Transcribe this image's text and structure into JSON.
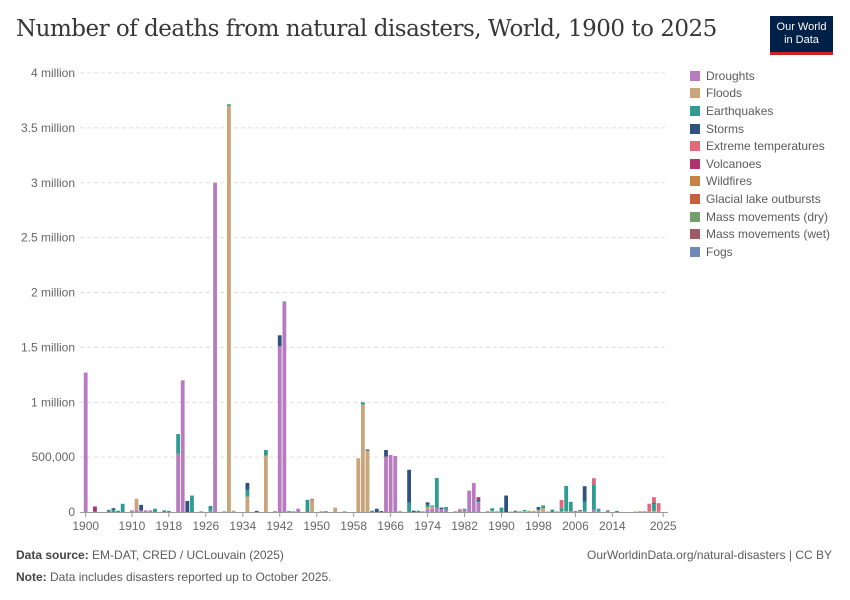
{
  "header": {
    "title": "Number of deaths from natural disasters, World, 1900 to 2025",
    "logo": "Our World in Data",
    "logo_line1": "Our World",
    "logo_line2": "in Data"
  },
  "footer": {
    "source_label": "Data source:",
    "source": "EM-DAT, CRED / UCLouvain (2025)",
    "url": "OurWorldinData.org/natural-disasters | CC BY",
    "note_label": "Note:",
    "note": "Data includes disasters reported up to October 2025."
  },
  "chart_data": {
    "type": "bar",
    "stacked": true,
    "title": "Number of deaths from natural disasters, World, 1900 to 2025",
    "xlim": [
      1900,
      2025
    ],
    "ylim": [
      0,
      4000000
    ],
    "grid": true,
    "legend": "right",
    "yticks": [
      {
        "v": 0,
        "label": "0"
      },
      {
        "v": 500000,
        "label": "500,000"
      },
      {
        "v": 1000000,
        "label": "1 million"
      },
      {
        "v": 1500000,
        "label": "1.5 million"
      },
      {
        "v": 2000000,
        "label": "2 million"
      },
      {
        "v": 2500000,
        "label": "2.5 million"
      },
      {
        "v": 3000000,
        "label": "3 million"
      },
      {
        "v": 3500000,
        "label": "3.5 million"
      },
      {
        "v": 4000000,
        "label": "4 million"
      }
    ],
    "xticks": [
      "1900",
      "1910",
      "1918",
      "1926",
      "1934",
      "1942",
      "1950",
      "1958",
      "1966",
      "1974",
      "1982",
      "1990",
      "1998",
      "2006",
      "2014",
      "2025"
    ],
    "series": [
      {
        "name": "Droughts",
        "color": "#b77cbf"
      },
      {
        "name": "Floods",
        "color": "#c9a57c"
      },
      {
        "name": "Earthquakes",
        "color": "#2f9c93"
      },
      {
        "name": "Storms",
        "color": "#2f5180"
      },
      {
        "name": "Extreme temperatures",
        "color": "#e4677a"
      },
      {
        "name": "Volcanoes",
        "color": "#b1326e"
      },
      {
        "name": "Wildfires",
        "color": "#c68343"
      },
      {
        "name": "Glacial lake outbursts",
        "color": "#c95d3c"
      },
      {
        "name": "Mass movements (dry)",
        "color": "#76a06b"
      },
      {
        "name": "Mass movements (wet)",
        "color": "#a05a66"
      },
      {
        "name": "Fogs",
        "color": "#6e89b6"
      }
    ],
    "bars": [
      {
        "year": 1900,
        "Droughts": 1270000
      },
      {
        "year": 1902,
        "Volcanoes": 45000,
        "Earthquakes": 5000
      },
      {
        "year": 1905,
        "Earthquakes": 20000
      },
      {
        "year": 1906,
        "Earthquakes": 20000,
        "Storms": 15000
      },
      {
        "year": 1907,
        "Earthquakes": 12000
      },
      {
        "year": 1908,
        "Earthquakes": 75000
      },
      {
        "year": 1910,
        "Droughts": 15000
      },
      {
        "year": 1911,
        "Floods": 100000,
        "Droughts": 20000
      },
      {
        "year": 1912,
        "Storms": 50000,
        "Droughts": 15000
      },
      {
        "year": 1913,
        "Droughts": 15000
      },
      {
        "year": 1914,
        "Droughts": 15000
      },
      {
        "year": 1915,
        "Earthquakes": 30000
      },
      {
        "year": 1917,
        "Earthquakes": 15000
      },
      {
        "year": 1918,
        "Earthquakes": 10000
      },
      {
        "year": 1920,
        "Earthquakes": 180000,
        "Droughts": 530000
      },
      {
        "year": 1921,
        "Droughts": 1200000
      },
      {
        "year": 1922,
        "Storms": 100000
      },
      {
        "year": 1923,
        "Earthquakes": 150000
      },
      {
        "year": 1925,
        "Earthquakes": 5000
      },
      {
        "year": 1927,
        "Earthquakes": 45000,
        "Droughts": 10000
      },
      {
        "year": 1928,
        "Droughts": 3000000
      },
      {
        "year": 1930,
        "Earthquakes": 5000
      },
      {
        "year": 1931,
        "Floods": 3700000,
        "Earthquakes": 15000
      },
      {
        "year": 1932,
        "Floods": 12000
      },
      {
        "year": 1935,
        "Storms": 60000,
        "Earthquakes": 65000,
        "Floods": 140000
      },
      {
        "year": 1937,
        "Storms": 10000
      },
      {
        "year": 1939,
        "Earthquakes": 50000,
        "Floods": 515000
      },
      {
        "year": 1941,
        "Droughts": 8000
      },
      {
        "year": 1942,
        "Storms": 100000,
        "Droughts": 1510000
      },
      {
        "year": 1943,
        "Droughts": 1910000,
        "Earthquakes": 8000
      },
      {
        "year": 1944,
        "Earthquakes": 8000
      },
      {
        "year": 1945,
        "Earthquakes": 5000
      },
      {
        "year": 1946,
        "Droughts": 30000
      },
      {
        "year": 1948,
        "Earthquakes": 110000
      },
      {
        "year": 1949,
        "Mass movements (wet)": 8000,
        "Floods": 112000
      },
      {
        "year": 1951,
        "Floods": 8000
      },
      {
        "year": 1952,
        "Storms": 5000
      },
      {
        "year": 1954,
        "Floods": 40000
      },
      {
        "year": 1956,
        "Earthquakes": 5000
      },
      {
        "year": 1959,
        "Floods": 490000
      },
      {
        "year": 1960,
        "Earthquakes": 20000,
        "Floods": 980000
      },
      {
        "year": 1961,
        "Storms": 10000,
        "Floods": 560000
      },
      {
        "year": 1962,
        "Earthquakes": 12000
      },
      {
        "year": 1963,
        "Storms": 30000
      },
      {
        "year": 1964,
        "Storms": 8000
      },
      {
        "year": 1965,
        "Storms": 60000,
        "Droughts": 505000
      },
      {
        "year": 1966,
        "Droughts": 520000
      },
      {
        "year": 1967,
        "Droughts": 510000
      },
      {
        "year": 1968,
        "Floods": 10000
      },
      {
        "year": 1970,
        "Storms": 300000,
        "Earthquakes": 85000
      },
      {
        "year": 1971,
        "Storms": 12000
      },
      {
        "year": 1972,
        "Earthquakes": 12000
      },
      {
        "year": 1973,
        "Floods": 8000
      },
      {
        "year": 1974,
        "Storms": 20000,
        "Earthquakes": 25000,
        "Floods": 20000,
        "Droughts": 23000
      },
      {
        "year": 1975,
        "Earthquakes": 10000,
        "Floods": 20000,
        "Droughts": 30000
      },
      {
        "year": 1976,
        "Earthquakes": 270000,
        "Droughts": 40000
      },
      {
        "year": 1977,
        "Storms": 15000,
        "Droughts": 25000
      },
      {
        "year": 1978,
        "Earthquakes": 25000,
        "Droughts": 20000
      },
      {
        "year": 1980,
        "Floods": 8000
      },
      {
        "year": 1981,
        "Floods": 10000,
        "Droughts": 20000
      },
      {
        "year": 1982,
        "Earthquakes": 10000,
        "Droughts": 20000
      },
      {
        "year": 1983,
        "Droughts": 195000
      },
      {
        "year": 1984,
        "Droughts": 265000
      },
      {
        "year": 1985,
        "Volcanoes": 23000,
        "Storms": 12000,
        "Earthquakes": 10000,
        "Droughts": 90000
      },
      {
        "year": 1987,
        "Floods": 10000
      },
      {
        "year": 1988,
        "Earthquakes": 25000,
        "Floods": 10000
      },
      {
        "year": 1989,
        "Earthquakes": 5000
      },
      {
        "year": 1990,
        "Earthquakes": 40000
      },
      {
        "year": 1991,
        "Storms": 150000
      },
      {
        "year": 1992,
        "Floods": 5000
      },
      {
        "year": 1993,
        "Earthquakes": 12000
      },
      {
        "year": 1994,
        "Floods": 8000
      },
      {
        "year": 1995,
        "Earthquakes": 10000,
        "Floods": 8000
      },
      {
        "year": 1996,
        "Floods": 12000
      },
      {
        "year": 1997,
        "Floods": 10000
      },
      {
        "year": 1998,
        "Storms": 20000,
        "Floods": 15000,
        "Earthquakes": 10000
      },
      {
        "year": 1999,
        "Earthquakes": 25000,
        "Floods": 35000
      },
      {
        "year": 2000,
        "Floods": 5000
      },
      {
        "year": 2001,
        "Earthquakes": 22000
      },
      {
        "year": 2002,
        "Droughts": 5000
      },
      {
        "year": 2003,
        "Extreme temperatures": 75000,
        "Earthquakes": 30000,
        "Floods": 5000
      },
      {
        "year": 2004,
        "Earthquakes": 230000,
        "Floods": 8000
      },
      {
        "year": 2005,
        "Earthquakes": 88000,
        "Floods": 5000
      },
      {
        "year": 2006,
        "Earthquakes": 8000
      },
      {
        "year": 2007,
        "Storms": 8000,
        "Floods": 8000
      },
      {
        "year": 2008,
        "Storms": 140000,
        "Earthquakes": 90000,
        "Floods": 5000
      },
      {
        "year": 2010,
        "Extreme temperatures": 58000,
        "Earthquakes": 230000,
        "Droughts": 20000
      },
      {
        "year": 2011,
        "Earthquakes": 20000,
        "Droughts": 10000
      },
      {
        "year": 2013,
        "Storms": 8000,
        "Floods": 6000
      },
      {
        "year": 2015,
        "Earthquakes": 10000
      },
      {
        "year": 2019,
        "Floods": 5000
      },
      {
        "year": 2020,
        "Floods": 8000
      },
      {
        "year": 2021,
        "Floods": 8000
      },
      {
        "year": 2022,
        "Extreme temperatures": 70000,
        "Floods": 5000
      },
      {
        "year": 2023,
        "Extreme temperatures": 50000,
        "Storms": 10000,
        "Earthquakes": 65000,
        "Floods": 10000
      },
      {
        "year": 2024,
        "Extreme temperatures": 75000,
        "Floods": 5000
      }
    ]
  }
}
